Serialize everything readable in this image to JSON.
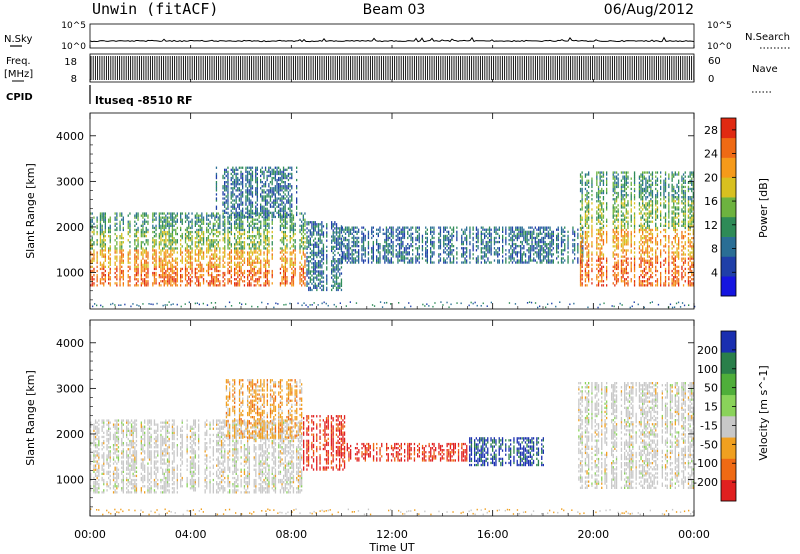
{
  "header": {
    "radar": "Unwin (fitACF)",
    "beam": "Beam 03",
    "date": "06/Aug/2012"
  },
  "top_panels": {
    "nsky_label": "N.Sky",
    "nsky_ticks": [
      "10^5",
      "10^0"
    ],
    "nsearch_label": "N.Search",
    "nsearch_ticks": [
      "10^5",
      "10^0"
    ],
    "freq_label": "Freq.",
    "freq_unit": "[MHz]",
    "freq_ticks": [
      "18",
      "8"
    ],
    "nave_label": "Nave",
    "nave_ticks": [
      "60",
      "0"
    ],
    "cpid_label": "CPID",
    "cpid_value": "ltuseq -8510 RF"
  },
  "chart_data": [
    {
      "type": "heatmap",
      "name": "power",
      "ylabel": "Slant Range [km]",
      "ylim": [
        200,
        4500
      ],
      "yticks": [
        "1000",
        "2000",
        "3000",
        "4000"
      ],
      "colorbar_label": "Power [dB]",
      "colorbar_ticks": [
        "4",
        "8",
        "12",
        "16",
        "20",
        "24",
        "28"
      ],
      "colorbar_range": [
        0,
        30
      ],
      "colors": [
        "#1515e0",
        "#1f3fa8",
        "#2a6e95",
        "#2e8b57",
        "#6db33f",
        "#d8c020",
        "#f59a1a",
        "#ef6a14",
        "#e02a12"
      ],
      "regions": [
        {
          "t0": 0.0,
          "t1": 8.6,
          "r0": 700,
          "r1": 2300,
          "level": "high"
        },
        {
          "t0": 5.0,
          "t1": 8.2,
          "r0": 2200,
          "r1": 3300,
          "level": "low"
        },
        {
          "t0": 8.6,
          "t1": 10.0,
          "r0": 600,
          "r1": 2100,
          "level": "low"
        },
        {
          "t0": 10.0,
          "t1": 19.6,
          "r0": 1200,
          "r1": 2000,
          "level": "low"
        },
        {
          "t0": 19.4,
          "t1": 24.0,
          "r0": 700,
          "r1": 3200,
          "level": "high"
        }
      ]
    },
    {
      "type": "heatmap",
      "name": "velocity",
      "xlabel": "Time UT",
      "ylabel": "Slant Range [km]",
      "ylim": [
        200,
        4500
      ],
      "yticks": [
        "1000",
        "2000",
        "3000",
        "4000"
      ],
      "xticks": [
        "00:00",
        "04:00",
        "08:00",
        "12:00",
        "16:00",
        "20:00",
        "00:00"
      ],
      "xlim": [
        0,
        24
      ],
      "colorbar_label": "Velocity [m s^-1]",
      "colorbar_ticks": [
        "200",
        "100",
        "50",
        "15",
        "-15",
        "-50",
        "-100",
        "-200"
      ],
      "colors": [
        "#1a2fb0",
        "#2a7f4a",
        "#4fae3a",
        "#8ad35a",
        "#c8c8c8",
        "#f0a020",
        "#ef6a14",
        "#e02020"
      ],
      "regions": [
        {
          "t0": 0.0,
          "t1": 8.4,
          "r0": 700,
          "r1": 2300,
          "kind": "ground"
        },
        {
          "t0": 5.2,
          "t1": 8.4,
          "r0": 1900,
          "r1": 3200,
          "kind": "neg"
        },
        {
          "t0": 8.4,
          "t1": 10.2,
          "r0": 1200,
          "r1": 2400,
          "kind": "strongneg"
        },
        {
          "t0": 10.2,
          "t1": 15.0,
          "r0": 1400,
          "r1": 1800,
          "kind": "strongneg"
        },
        {
          "t0": 15.0,
          "t1": 18.0,
          "r0": 1300,
          "r1": 1900,
          "kind": "pos"
        },
        {
          "t0": 19.4,
          "t1": 24.0,
          "r0": 800,
          "r1": 3100,
          "kind": "ground"
        }
      ]
    }
  ]
}
